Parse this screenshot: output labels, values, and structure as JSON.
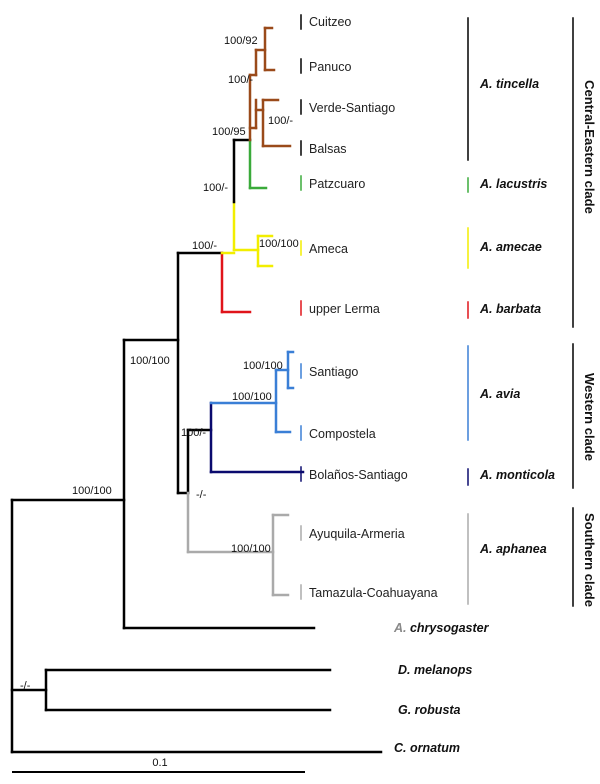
{
  "colors": {
    "black": "#000000",
    "brown": "#9a4a1a",
    "green": "#3aaa3a",
    "yellow": "#f2ee00",
    "red": "#e0141a",
    "blue": "#3a7fd6",
    "navy": "#0a0a6e",
    "gray": "#aaaaaa"
  },
  "populations": {
    "cuitzeo": "Cuitzeo",
    "panuco": "Panuco",
    "verde_santiago": "Verde-Santiago",
    "balsas": "Balsas",
    "patzcuaro": "Patzcuaro",
    "ameca": "Ameca",
    "upper_lerma": "upper Lerma",
    "santiago": "Santiago",
    "compostela": "Compostela",
    "bolanos_santiago": "Bolaños-Santiago",
    "ayuquila_armeria": "Ayuquila-Armeria",
    "tamazula_coahuayana": "Tamazula-Coahuayana"
  },
  "species": {
    "tincella": "A. tincella",
    "lacustris": "A. lacustris",
    "amecae": "A. amecae",
    "barbata": "A. barbata",
    "avia": "A. avia",
    "monticola": "A. monticola",
    "aphanea": "A. aphanea",
    "chrysogaster_prefix": "A.",
    "chrysogaster_rest": " chrysogaster",
    "melanops": "D. melanops",
    "robusta": "G. robusta",
    "ornatum": "C. ornatum"
  },
  "clades": {
    "central_eastern": "Central-Eastern clade",
    "western": "Western clade",
    "southern": "Southern clade"
  },
  "support": {
    "cuitzeo_panuco": "100/92",
    "upper_three": "100/-",
    "verde_balsas": "100/-",
    "tincella_clade": "100/95",
    "with_patzcuaro": "100/-",
    "with_ameca": "100/-",
    "ameca": "100/100",
    "ingroup": "100/100",
    "santiago": "100/100",
    "avia": "100/100",
    "western": "100/-",
    "west_south": "-/-",
    "aphanea": "100/100",
    "root_ingroup": "100/100",
    "outgroup_pair": "-/-"
  },
  "scale": "0.1"
}
